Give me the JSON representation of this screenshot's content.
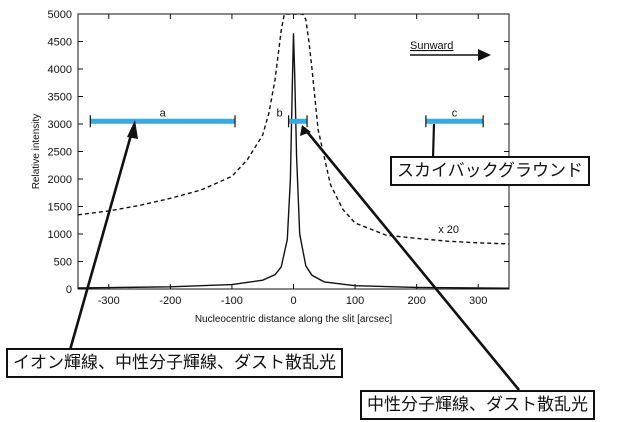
{
  "chart_data": {
    "type": "line",
    "xlabel": "Nucleocentric distance along the slit [arcsec]",
    "ylabel": "Relative intensity",
    "xlim": [
      -350,
      350
    ],
    "ylim": [
      0,
      5000
    ],
    "x_ticks": [
      -300,
      -200,
      -100,
      0,
      100,
      200,
      300
    ],
    "y_ticks": [
      0,
      500,
      1000,
      1500,
      2000,
      2500,
      3000,
      3500,
      4000,
      4500,
      5000
    ],
    "grid": false,
    "series": [
      {
        "style": "solid",
        "x": [
          -350,
          -300,
          -200,
          -100,
          -50,
          -30,
          -20,
          -10,
          -5,
          -2,
          0,
          2,
          5,
          10,
          20,
          30,
          50,
          100,
          200,
          300,
          350
        ],
        "y": [
          20,
          25,
          40,
          80,
          160,
          260,
          400,
          900,
          2000,
          3700,
          4650,
          3900,
          2400,
          1000,
          420,
          250,
          130,
          60,
          30,
          20,
          15
        ]
      },
      {
        "style": "dashed",
        "annotation": "x 20",
        "x": [
          -350,
          -300,
          -250,
          -200,
          -150,
          -100,
          -75,
          -50,
          -40,
          -30,
          -20,
          -15,
          -10,
          15,
          20,
          25,
          30,
          40,
          60,
          80,
          100,
          150,
          200,
          250,
          300,
          350
        ],
        "y": [
          1350,
          1420,
          1520,
          1650,
          1800,
          2050,
          2350,
          2800,
          3200,
          3800,
          4700,
          5000,
          5000,
          5000,
          4900,
          4500,
          4000,
          2900,
          1900,
          1450,
          1200,
          980,
          920,
          870,
          840,
          820
        ]
      }
    ],
    "regions": [
      {
        "label": "a",
        "x0": -330,
        "x1": -95,
        "y": 3050
      },
      {
        "label": "b",
        "x0": -8,
        "x1": 22,
        "y": 3050
      },
      {
        "label": "c",
        "x0": 215,
        "x1": 308,
        "y": 3050
      }
    ],
    "direction_label": "Sunward",
    "colors": {
      "bar": "#29aee8",
      "line": "#111111"
    }
  },
  "callouts": {
    "sky": "スカイバックグラウンド",
    "ion": "イオン輝線、中性分子輝線、ダスト散乱光",
    "neutral": "中性分子輝線、ダスト散乱光"
  }
}
